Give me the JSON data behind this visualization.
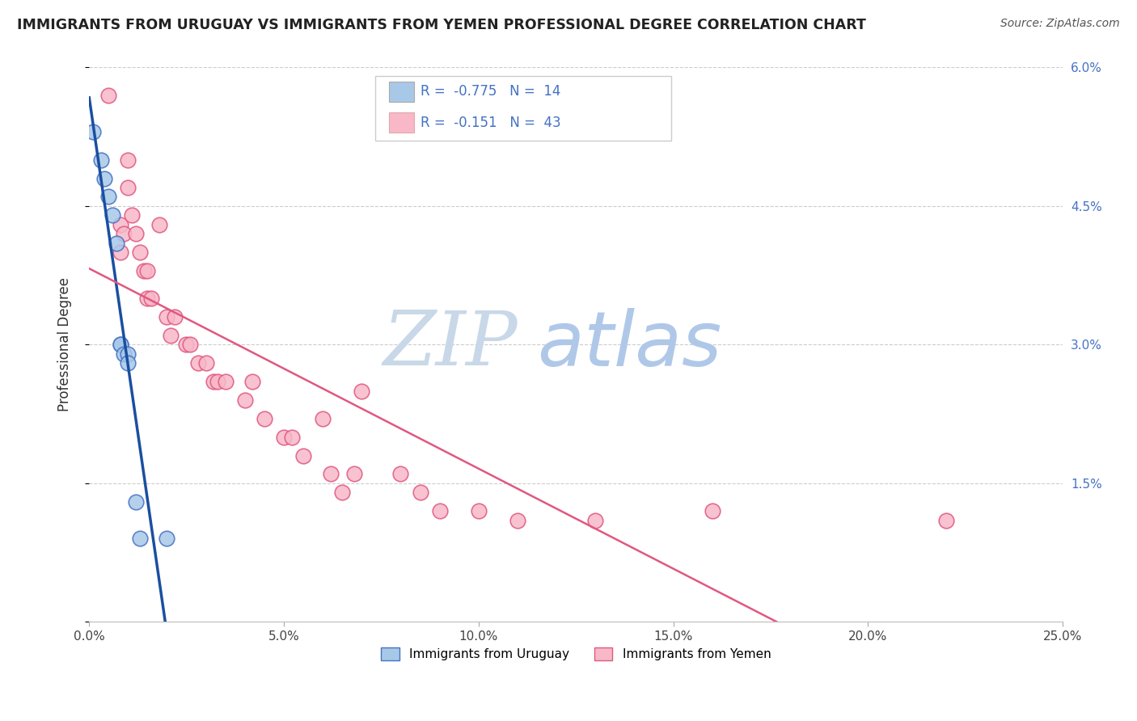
{
  "title": "IMMIGRANTS FROM URUGUAY VS IMMIGRANTS FROM YEMEN PROFESSIONAL DEGREE CORRELATION CHART",
  "source": "Source: ZipAtlas.com",
  "ylabel": "Professional Degree",
  "xlim": [
    0.0,
    0.25
  ],
  "ylim": [
    0.0,
    0.06
  ],
  "xticks": [
    0.0,
    0.05,
    0.1,
    0.15,
    0.2,
    0.25
  ],
  "yticks": [
    0.0,
    0.015,
    0.03,
    0.045,
    0.06
  ],
  "xtick_labels": [
    "0.0%",
    "5.0%",
    "10.0%",
    "15.0%",
    "20.0%",
    "25.0%"
  ],
  "ytick_labels_right": [
    "",
    "1.5%",
    "3.0%",
    "4.5%",
    "6.0%"
  ],
  "legend_uruguay": "Immigrants from Uruguay",
  "legend_yemen": "Immigrants from Yemen",
  "R_uruguay": -0.775,
  "N_uruguay": 14,
  "R_yemen": -0.151,
  "N_yemen": 43,
  "color_uruguay": "#a8c8e8",
  "color_yemen": "#f8b8c8",
  "edge_color_uruguay": "#4472c4",
  "edge_color_yemen": "#e05880",
  "line_color_uruguay": "#1a4fa0",
  "line_color_yemen": "#e05880",
  "watermark_zip": "ZIP",
  "watermark_atlas": "atlas",
  "watermark_zip_color": "#c8d8e8",
  "watermark_atlas_color": "#b0c8e8",
  "uruguay_x": [
    0.001,
    0.003,
    0.004,
    0.005,
    0.006,
    0.007,
    0.008,
    0.008,
    0.009,
    0.01,
    0.01,
    0.012,
    0.013,
    0.02
  ],
  "uruguay_y": [
    0.053,
    0.05,
    0.048,
    0.046,
    0.044,
    0.041,
    0.03,
    0.03,
    0.029,
    0.029,
    0.028,
    0.013,
    0.009,
    0.009
  ],
  "yemen_x": [
    0.005,
    0.008,
    0.008,
    0.009,
    0.01,
    0.01,
    0.011,
    0.012,
    0.013,
    0.014,
    0.015,
    0.015,
    0.016,
    0.018,
    0.02,
    0.021,
    0.022,
    0.025,
    0.026,
    0.028,
    0.03,
    0.032,
    0.033,
    0.035,
    0.04,
    0.042,
    0.045,
    0.05,
    0.052,
    0.055,
    0.06,
    0.062,
    0.065,
    0.068,
    0.07,
    0.08,
    0.085,
    0.09,
    0.1,
    0.11,
    0.13,
    0.16,
    0.22
  ],
  "yemen_y": [
    0.057,
    0.043,
    0.04,
    0.042,
    0.05,
    0.047,
    0.044,
    0.042,
    0.04,
    0.038,
    0.038,
    0.035,
    0.035,
    0.043,
    0.033,
    0.031,
    0.033,
    0.03,
    0.03,
    0.028,
    0.028,
    0.026,
    0.026,
    0.026,
    0.024,
    0.026,
    0.022,
    0.02,
    0.02,
    0.018,
    0.022,
    0.016,
    0.014,
    0.016,
    0.025,
    0.016,
    0.014,
    0.012,
    0.012,
    0.011,
    0.011,
    0.012,
    0.011
  ]
}
